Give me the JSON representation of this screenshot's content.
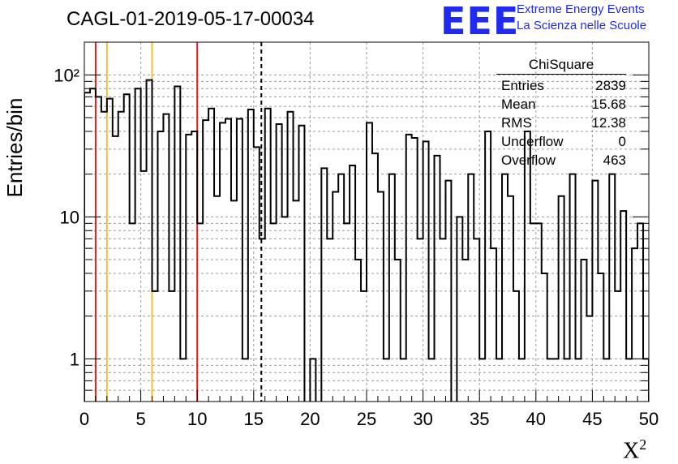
{
  "header": {
    "run_title": "CAGL-01-2019-05-17-00034",
    "logo_text": "EEE",
    "logo_line1": "Extreme Energy Events",
    "logo_line2": "La Scienza nelle Scuole"
  },
  "stats_box": {
    "title": "ChiSquare",
    "rows": [
      {
        "label": "Entries",
        "value": "2839"
      },
      {
        "label": "Mean",
        "value": "15.68"
      },
      {
        "label": "RMS",
        "value": "12.38"
      },
      {
        "label": "Underflow",
        "value": "0"
      },
      {
        "label": "Overflow",
        "value": "463"
      }
    ]
  },
  "chart_data": {
    "type": "step-histogram",
    "ylabel": "Entries/bin",
    "xlabel": "X",
    "xlabel_sup": "2",
    "xlim": [
      0,
      50
    ],
    "ylim": [
      0.5,
      170
    ],
    "log_y": true,
    "grid": true,
    "bin_width": 0.5,
    "x_ticks": [
      0,
      5,
      10,
      15,
      20,
      25,
      30,
      35,
      40,
      45,
      50
    ],
    "y_ticks": [
      {
        "value": 1,
        "label": "1"
      },
      {
        "value": 10,
        "label": "10"
      },
      {
        "value": 100,
        "label": "10²"
      }
    ],
    "values": [
      75,
      80,
      70,
      55,
      68,
      37,
      55,
      73,
      9,
      80,
      21,
      92,
      3,
      40,
      53,
      3,
      83,
      1,
      38,
      40,
      9,
      48,
      58,
      14,
      46,
      49,
      13,
      49,
      1,
      57,
      31,
      7,
      58,
      9,
      45,
      10,
      55,
      13,
      44,
      0.3,
      1,
      0.3,
      22,
      7,
      15,
      20,
      9,
      23,
      5,
      3,
      46,
      28,
      15,
      1,
      20,
      5,
      1,
      38,
      36,
      7,
      34,
      1,
      27,
      7,
      18,
      0.3,
      10,
      5,
      20,
      7,
      1,
      40,
      6,
      1,
      20,
      14,
      3,
      1,
      40,
      9,
      9,
      4,
      1,
      1,
      14,
      1,
      20,
      1,
      5,
      2,
      18,
      4,
      1,
      20,
      3,
      11,
      1,
      6,
      9,
      1,
      0.3
    ],
    "vertical_lines": [
      {
        "x": 1,
        "color": "#e0201b",
        "style": "solid"
      },
      {
        "x": 2,
        "color": "#f2c12e",
        "style": "solid"
      },
      {
        "x": 6,
        "color": "#f2c12e",
        "style": "solid"
      },
      {
        "x": 10,
        "color": "#e0201b",
        "style": "solid"
      },
      {
        "x": 15.68,
        "color": "#000000",
        "style": "dashed"
      }
    ]
  }
}
